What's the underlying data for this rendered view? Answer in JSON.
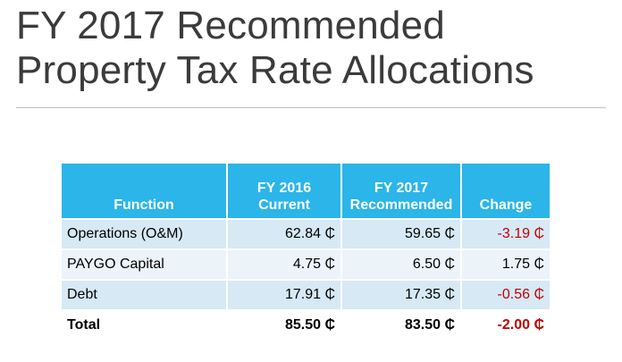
{
  "slide": {
    "title_line1": "FY 2017 Recommended",
    "title_line2": "Property Tax Rate Allocations"
  },
  "table": {
    "headers": {
      "function": [
        "Function"
      ],
      "fy2016": [
        "FY 2016",
        "Current"
      ],
      "fy2017": [
        "FY 2017",
        "Recommended"
      ],
      "change": [
        "Change"
      ]
    },
    "rows": [
      {
        "function": "Operations (O&M)",
        "fy2016": "62.84 ₵",
        "fy2017": "59.65 ₵",
        "change": "-3.19 ₵"
      },
      {
        "function": "PAYGO Capital",
        "fy2016": "4.75 ₵",
        "fy2017": "6.50 ₵",
        "change": "1.75 ₵"
      },
      {
        "function": "Debt",
        "fy2016": "17.91 ₵",
        "fy2017": "17.35 ₵",
        "change": "-0.56 ₵"
      }
    ],
    "total": {
      "function": "Total",
      "fy2016": "85.50 ₵",
      "fy2017": "83.50 ₵",
      "change": "-2.00 ₵"
    }
  },
  "colors": {
    "header_bg": "#2bb5e8",
    "row_dark": "#d6e9f5",
    "row_light": "#ecf4fa",
    "negative": "#c00000",
    "title_text": "#3b3b3b"
  }
}
